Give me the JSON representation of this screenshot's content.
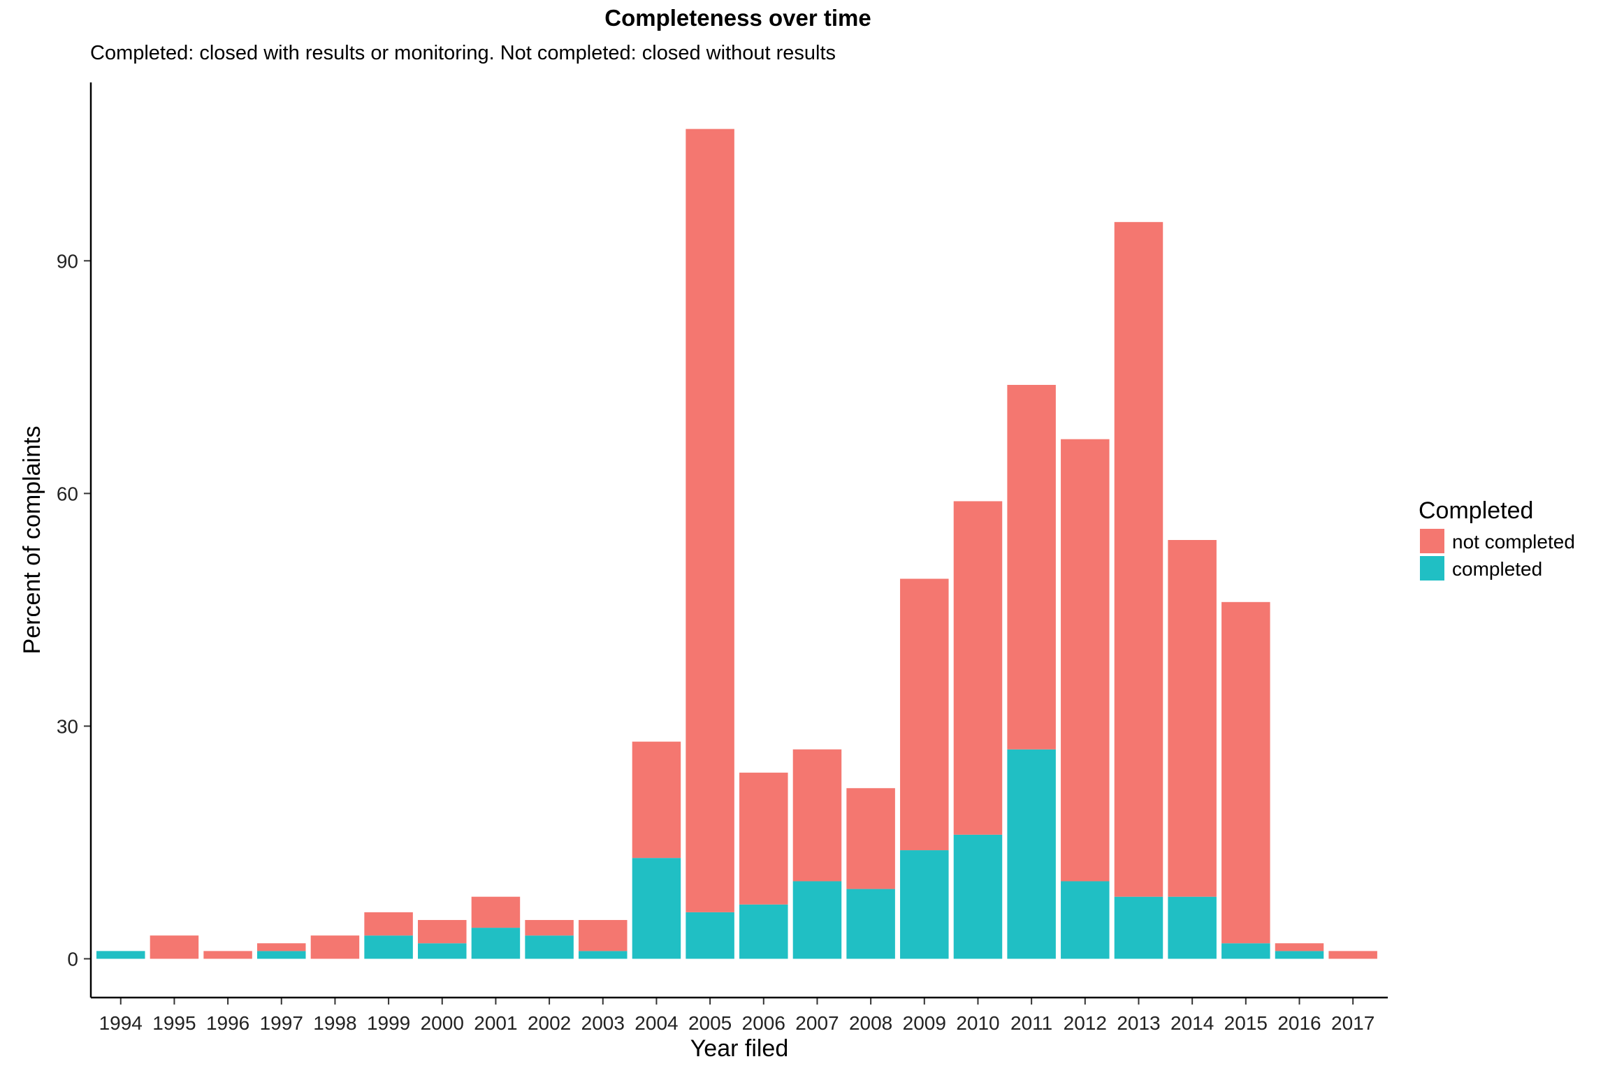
{
  "chart_data": {
    "type": "bar",
    "stacked": true,
    "title": "Completeness over time",
    "subtitle": "Completed: closed with results or monitoring. Not completed: closed without results",
    "xlabel": "Year filed",
    "ylabel": "Percent of complaints",
    "categories": [
      "1994",
      "1995",
      "1996",
      "1997",
      "1998",
      "1999",
      "2000",
      "2001",
      "2002",
      "2003",
      "2004",
      "2005",
      "2006",
      "2007",
      "2008",
      "2009",
      "2010",
      "2011",
      "2012",
      "2013",
      "2014",
      "2015",
      "2016",
      "2017"
    ],
    "series": [
      {
        "name": "completed",
        "color": "#20BFC4",
        "values": [
          1,
          0,
          0,
          1,
          0,
          3,
          2,
          4,
          3,
          1,
          13,
          6,
          7,
          10,
          9,
          14,
          16,
          27,
          10,
          8,
          8,
          2,
          1,
          0
        ]
      },
      {
        "name": "not completed",
        "color": "#F47770",
        "values": [
          0,
          3,
          1,
          1,
          3,
          3,
          3,
          4,
          2,
          4,
          15,
          101,
          17,
          17,
          13,
          35,
          43,
          47,
          57,
          87,
          46,
          44,
          1,
          1
        ]
      }
    ],
    "yticks": [
      0,
      30,
      60,
      90
    ],
    "ylim": [
      -5,
      113
    ],
    "grid": false,
    "legend": {
      "title": "Completed",
      "position": "right",
      "entries": [
        {
          "label": "not completed",
          "color": "#F47770"
        },
        {
          "label": "completed",
          "color": "#20BFC4"
        }
      ]
    }
  }
}
